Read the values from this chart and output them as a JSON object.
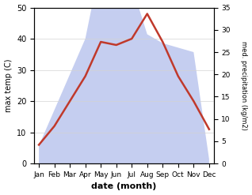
{
  "months": [
    "Jan",
    "Feb",
    "Mar",
    "Apr",
    "May",
    "Jun",
    "Jul",
    "Aug",
    "Sep",
    "Oct",
    "Nov",
    "Dec"
  ],
  "temperature": [
    6,
    12,
    20,
    28,
    39,
    38,
    40,
    48,
    39,
    28,
    20,
    11
  ],
  "precipitation": [
    4,
    12,
    20,
    28,
    45,
    42,
    40,
    29,
    27,
    26,
    25,
    1
  ],
  "temp_color": "#c0392b",
  "precip_color_fill": "#c5cef0",
  "temp_ylim": [
    0,
    50
  ],
  "precip_ylim": [
    0,
    35
  ],
  "temp_yticks": [
    0,
    10,
    20,
    30,
    40,
    50
  ],
  "precip_yticks": [
    0,
    5,
    10,
    15,
    20,
    25,
    30,
    35
  ],
  "xlabel": "date (month)",
  "ylabel_left": "max temp (C)",
  "ylabel_right": "med. precipitation (kg/m2)",
  "bg_color": "#ffffff"
}
